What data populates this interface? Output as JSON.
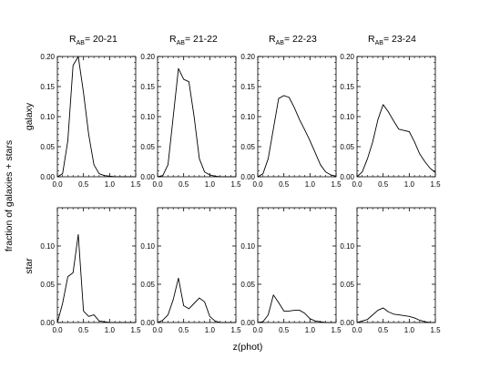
{
  "figure": {
    "ylabel_outer": "fraction of galaxies + stars",
    "xlabel": "z(phot)",
    "row_labels": [
      "galaxy",
      "star"
    ]
  },
  "column_titles": [
    {
      "main": "R",
      "sub": "AB",
      "range": "= 20-21"
    },
    {
      "main": "R",
      "sub": "AB",
      "range": "= 21-22"
    },
    {
      "main": "R",
      "sub": "AB",
      "range": "= 22-23"
    },
    {
      "main": "R",
      "sub": "AB",
      "range": "= 23-24"
    }
  ],
  "chart_data": [
    {
      "type": "line",
      "row": "galaxy",
      "column": "R_AB 20-21",
      "x": [
        0.0,
        0.1,
        0.2,
        0.3,
        0.4,
        0.5,
        0.6,
        0.7,
        0.8,
        0.9,
        1.0,
        1.1,
        1.2,
        1.3,
        1.4,
        1.5
      ],
      "y": [
        0.0,
        0.005,
        0.06,
        0.185,
        0.2,
        0.14,
        0.07,
        0.02,
        0.005,
        0.002,
        0.001,
        0.0,
        0.0,
        0.0,
        0.0,
        0.0
      ],
      "xlim": [
        0,
        1.5
      ],
      "ylim": [
        0,
        0.2
      ]
    },
    {
      "type": "line",
      "row": "galaxy",
      "column": "R_AB 21-22",
      "x": [
        0.0,
        0.1,
        0.2,
        0.3,
        0.4,
        0.5,
        0.6,
        0.7,
        0.8,
        0.9,
        1.0,
        1.1,
        1.2,
        1.3,
        1.4,
        1.5
      ],
      "y": [
        0.0,
        0.002,
        0.02,
        0.1,
        0.18,
        0.162,
        0.158,
        0.1,
        0.03,
        0.008,
        0.003,
        0.001,
        0.0,
        0.0,
        0.0,
        0.0
      ],
      "xlim": [
        0,
        1.5
      ],
      "ylim": [
        0,
        0.2
      ]
    },
    {
      "type": "line",
      "row": "galaxy",
      "column": "R_AB 22-23",
      "x": [
        0.0,
        0.1,
        0.2,
        0.3,
        0.4,
        0.5,
        0.6,
        0.7,
        0.8,
        0.9,
        1.0,
        1.1,
        1.2,
        1.3,
        1.4,
        1.5
      ],
      "y": [
        0.0,
        0.005,
        0.03,
        0.08,
        0.13,
        0.135,
        0.132,
        0.115,
        0.095,
        0.078,
        0.06,
        0.04,
        0.02,
        0.008,
        0.003,
        0.001
      ],
      "xlim": [
        0,
        1.5
      ],
      "ylim": [
        0,
        0.2
      ]
    },
    {
      "type": "line",
      "row": "galaxy",
      "column": "R_AB 23-24",
      "x": [
        0.0,
        0.1,
        0.2,
        0.3,
        0.4,
        0.5,
        0.6,
        0.7,
        0.8,
        0.9,
        1.0,
        1.1,
        1.2,
        1.3,
        1.4,
        1.5
      ],
      "y": [
        0.0,
        0.008,
        0.03,
        0.058,
        0.095,
        0.12,
        0.108,
        0.093,
        0.079,
        0.077,
        0.075,
        0.058,
        0.038,
        0.025,
        0.014,
        0.007
      ],
      "xlim": [
        0,
        1.5
      ],
      "ylim": [
        0,
        0.2
      ]
    },
    {
      "type": "line",
      "row": "star",
      "column": "R_AB 20-21",
      "x": [
        0.0,
        0.1,
        0.2,
        0.3,
        0.4,
        0.5,
        0.6,
        0.7,
        0.8,
        0.9,
        1.0,
        1.1,
        1.2,
        1.3,
        1.4,
        1.5
      ],
      "y": [
        0.0,
        0.025,
        0.06,
        0.065,
        0.115,
        0.015,
        0.008,
        0.01,
        0.002,
        0.001,
        0.0,
        0.0,
        0.0,
        0.0,
        0.0,
        0.0
      ],
      "xlim": [
        0,
        1.5
      ],
      "ylim": [
        0,
        0.15
      ]
    },
    {
      "type": "line",
      "row": "star",
      "column": "R_AB 21-22",
      "x": [
        0.0,
        0.1,
        0.2,
        0.3,
        0.4,
        0.5,
        0.6,
        0.7,
        0.8,
        0.9,
        1.0,
        1.1,
        1.2,
        1.3,
        1.4,
        1.5
      ],
      "y": [
        0.0,
        0.003,
        0.01,
        0.03,
        0.058,
        0.022,
        0.018,
        0.025,
        0.032,
        0.027,
        0.008,
        0.002,
        0.0,
        0.0,
        0.0,
        0.0
      ],
      "xlim": [
        0,
        1.5
      ],
      "ylim": [
        0,
        0.15
      ]
    },
    {
      "type": "line",
      "row": "star",
      "column": "R_AB 22-23",
      "x": [
        0.0,
        0.1,
        0.2,
        0.3,
        0.4,
        0.5,
        0.6,
        0.7,
        0.8,
        0.9,
        1.0,
        1.1,
        1.2,
        1.3,
        1.4,
        1.5
      ],
      "y": [
        0.0,
        0.001,
        0.01,
        0.036,
        0.026,
        0.015,
        0.015,
        0.016,
        0.016,
        0.012,
        0.005,
        0.002,
        0.001,
        0.0,
        0.0,
        0.0
      ],
      "xlim": [
        0,
        1.5
      ],
      "ylim": [
        0,
        0.15
      ]
    },
    {
      "type": "line",
      "row": "star",
      "column": "R_AB 23-24",
      "x": [
        0.0,
        0.1,
        0.2,
        0.3,
        0.4,
        0.5,
        0.6,
        0.7,
        0.8,
        0.9,
        1.0,
        1.1,
        1.2,
        1.3,
        1.4,
        1.5
      ],
      "y": [
        0.0,
        0.002,
        0.004,
        0.01,
        0.016,
        0.019,
        0.014,
        0.011,
        0.01,
        0.009,
        0.008,
        0.006,
        0.003,
        0.001,
        0.0,
        0.0
      ],
      "xlim": [
        0,
        1.5
      ],
      "ylim": [
        0,
        0.15
      ]
    }
  ],
  "axes": {
    "x_ticks": [
      "0.0",
      "0.5",
      "1.0",
      "1.5"
    ],
    "y_ticks_galaxy": [
      "0.00",
      "0.05",
      "0.10",
      "0.15",
      "0.20"
    ],
    "y_ticks_star": [
      "0.00",
      "0.05",
      "0.10"
    ]
  },
  "style": {
    "line_color": "#000000",
    "background": "#ffffff"
  }
}
